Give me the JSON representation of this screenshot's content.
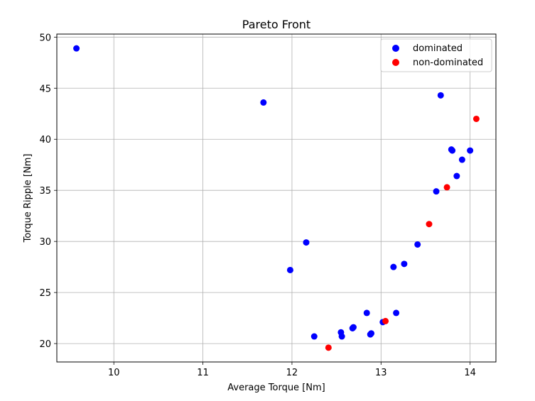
{
  "chart_data": {
    "type": "scatter",
    "title": "Pareto Front",
    "xlabel": "Average Torque [Nm]",
    "ylabel": "Torque Ripple [Nm]",
    "xlim": [
      9.36,
      14.29
    ],
    "ylim": [
      18.2,
      50.3
    ],
    "xticks": [
      10,
      11,
      12,
      13,
      14
    ],
    "yticks": [
      20,
      25,
      30,
      35,
      40,
      45,
      50
    ],
    "grid": true,
    "legend_position": "top-right",
    "series": [
      {
        "name": "dominated",
        "color": "#0000ff",
        "points": [
          [
            9.58,
            48.9
          ],
          [
            11.68,
            43.6
          ],
          [
            13.67,
            44.3
          ],
          [
            14.0,
            38.9
          ],
          [
            13.79,
            39.0
          ],
          [
            13.8,
            38.9
          ],
          [
            13.91,
            38.0
          ],
          [
            13.85,
            36.4
          ],
          [
            13.62,
            34.9
          ],
          [
            13.41,
            29.7
          ],
          [
            12.16,
            29.9
          ],
          [
            11.98,
            27.2
          ],
          [
            13.14,
            27.5
          ],
          [
            13.26,
            27.8
          ],
          [
            12.84,
            23.0
          ],
          [
            13.17,
            23.0
          ],
          [
            13.02,
            22.1
          ],
          [
            12.68,
            21.5
          ],
          [
            12.69,
            21.6
          ],
          [
            12.55,
            21.1
          ],
          [
            12.56,
            20.7
          ],
          [
            12.88,
            20.9
          ],
          [
            12.89,
            21.0
          ],
          [
            12.25,
            20.7
          ]
        ]
      },
      {
        "name": "non-dominated",
        "color": "#ff0000",
        "points": [
          [
            14.07,
            42.0
          ],
          [
            13.74,
            35.3
          ],
          [
            13.54,
            31.7
          ],
          [
            13.05,
            22.2
          ],
          [
            12.41,
            19.6
          ]
        ]
      }
    ]
  }
}
